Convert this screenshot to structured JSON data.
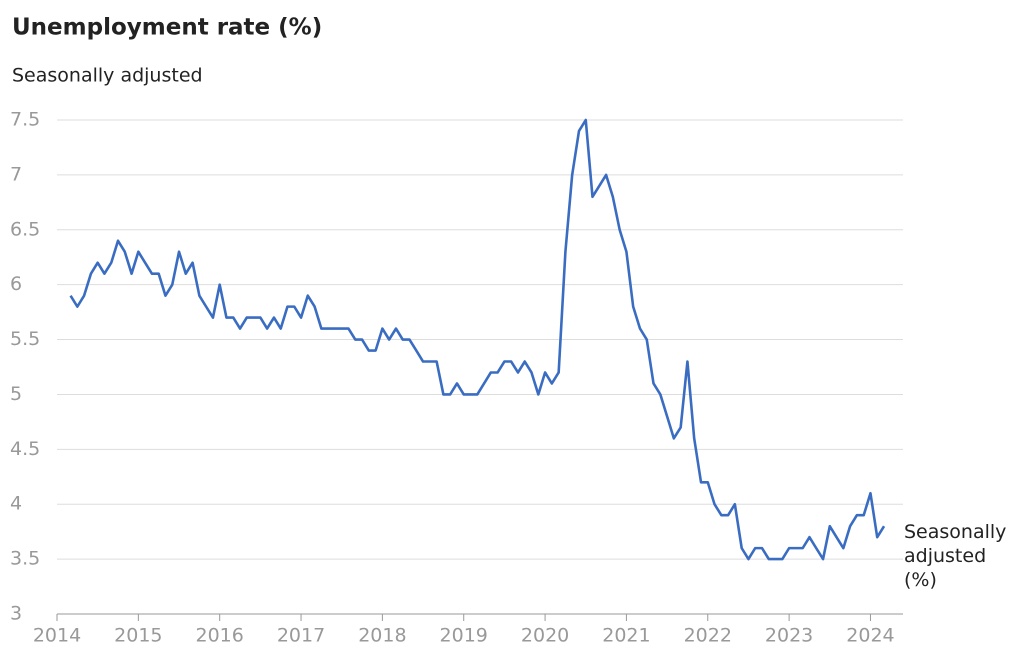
{
  "chart_data": {
    "type": "line",
    "title": "Unemployment rate (%)",
    "subtitle": "Seasonally adjusted",
    "x": [
      2014.167,
      2014.25,
      2014.333,
      2014.417,
      2014.5,
      2014.583,
      2014.667,
      2014.75,
      2014.833,
      2014.917,
      2015,
      2015.083,
      2015.167,
      2015.25,
      2015.333,
      2015.417,
      2015.5,
      2015.583,
      2015.667,
      2015.75,
      2015.833,
      2015.917,
      2016,
      2016.083,
      2016.167,
      2016.25,
      2016.333,
      2016.417,
      2016.5,
      2016.583,
      2016.667,
      2016.75,
      2016.833,
      2016.917,
      2017,
      2017.083,
      2017.167,
      2017.25,
      2017.333,
      2017.417,
      2017.5,
      2017.583,
      2017.667,
      2017.75,
      2017.833,
      2017.917,
      2018,
      2018.083,
      2018.167,
      2018.25,
      2018.333,
      2018.417,
      2018.5,
      2018.583,
      2018.667,
      2018.75,
      2018.833,
      2018.917,
      2019,
      2019.083,
      2019.167,
      2019.25,
      2019.333,
      2019.417,
      2019.5,
      2019.583,
      2019.667,
      2019.75,
      2019.833,
      2019.917,
      2020,
      2020.083,
      2020.167,
      2020.25,
      2020.333,
      2020.417,
      2020.5,
      2020.583,
      2020.667,
      2020.75,
      2020.833,
      2020.917,
      2021,
      2021.083,
      2021.167,
      2021.25,
      2021.333,
      2021.417,
      2021.5,
      2021.583,
      2021.667,
      2021.75,
      2021.833,
      2021.917,
      2022,
      2022.083,
      2022.167,
      2022.25,
      2022.333,
      2022.417,
      2022.5,
      2022.583,
      2022.667,
      2022.75,
      2022.833,
      2022.917,
      2023,
      2023.083,
      2023.167,
      2023.25,
      2023.333,
      2023.417,
      2023.5,
      2023.583,
      2023.667,
      2023.75,
      2023.833,
      2023.917,
      2024,
      2024.083,
      2024.167
    ],
    "series": [
      {
        "name": "Seasonally adjusted (%)",
        "color": "#3a6dc2",
        "values": [
          5.9,
          5.8,
          5.9,
          6.1,
          6.2,
          6.1,
          6.2,
          6.4,
          6.3,
          6.1,
          6.3,
          6.2,
          6.1,
          6.1,
          5.9,
          6.0,
          6.3,
          6.1,
          6.2,
          5.9,
          5.8,
          5.7,
          6.0,
          5.7,
          5.7,
          5.6,
          5.7,
          5.7,
          5.7,
          5.6,
          5.7,
          5.6,
          5.8,
          5.8,
          5.7,
          5.9,
          5.8,
          5.6,
          5.6,
          5.6,
          5.6,
          5.6,
          5.5,
          5.5,
          5.4,
          5.4,
          5.6,
          5.5,
          5.6,
          5.5,
          5.5,
          5.4,
          5.3,
          5.3,
          5.3,
          5.0,
          5.0,
          5.1,
          5.0,
          5.0,
          5.0,
          5.1,
          5.2,
          5.2,
          5.3,
          5.3,
          5.2,
          5.3,
          5.2,
          5.0,
          5.2,
          5.1,
          5.2,
          6.3,
          7.0,
          7.4,
          7.5,
          6.8,
          6.9,
          7.0,
          6.8,
          6.5,
          6.3,
          5.8,
          5.6,
          5.5,
          5.1,
          5.0,
          4.8,
          4.6,
          4.7,
          5.3,
          4.6,
          4.2,
          4.2,
          4.0,
          3.9,
          3.9,
          4.0,
          3.6,
          3.5,
          3.6,
          3.6,
          3.5,
          3.5,
          3.5,
          3.6,
          3.6,
          3.6,
          3.7,
          3.6,
          3.5,
          3.8,
          3.7,
          3.6,
          3.8,
          3.9,
          3.9,
          4.1,
          3.7,
          3.8
        ]
      }
    ],
    "xlim": [
      2014,
      2024.4
    ],
    "xticks": [
      2014,
      2015,
      2016,
      2017,
      2018,
      2019,
      2020,
      2021,
      2022,
      2023,
      2024
    ],
    "ylim": [
      3,
      7.5
    ],
    "yticks": [
      3,
      3.5,
      4,
      4.5,
      5,
      5.5,
      6,
      6.5,
      7,
      7.5
    ],
    "grid": true
  }
}
